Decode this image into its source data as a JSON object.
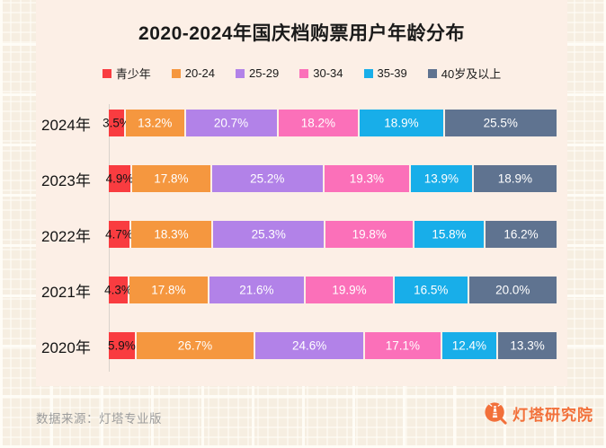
{
  "title": "2020-2024年国庆档购票用户年龄分布",
  "colors": {
    "card_bg": "#FCEFE6",
    "page_bg": "#F6EEE1",
    "axis_line": "#D9D3CC",
    "brand_orange": "#F2703A",
    "source_gray": "#9C9C9C"
  },
  "chart_data": {
    "type": "bar",
    "orientation": "horizontal",
    "stacked": true,
    "percent_total": 100,
    "unit": "%",
    "legend_position": "top",
    "value_labels": true,
    "categories": [
      "2024年",
      "2023年",
      "2022年",
      "2021年",
      "2020年"
    ],
    "series": [
      {
        "name": "青少年",
        "color": "#F93C40",
        "values": [
          3.5,
          4.9,
          4.7,
          4.3,
          5.9
        ]
      },
      {
        "name": "20-24",
        "color": "#F5973F",
        "values": [
          13.2,
          17.8,
          18.3,
          17.8,
          26.7
        ]
      },
      {
        "name": "25-29",
        "color": "#B282E8",
        "values": [
          20.7,
          25.2,
          25.3,
          21.6,
          24.6
        ]
      },
      {
        "name": "30-34",
        "color": "#FB70B9",
        "values": [
          18.2,
          19.3,
          19.8,
          19.9,
          17.1
        ]
      },
      {
        "name": "35-39",
        "color": "#18AEE9",
        "values": [
          18.9,
          13.9,
          15.8,
          16.5,
          12.4
        ]
      },
      {
        "name": "40岁及以上",
        "color": "#5F7390",
        "values": [
          25.5,
          18.9,
          16.2,
          20.0,
          13.3
        ]
      }
    ]
  },
  "footer": {
    "source": "数据来源：灯塔专业版",
    "brand": "灯塔研究院"
  }
}
